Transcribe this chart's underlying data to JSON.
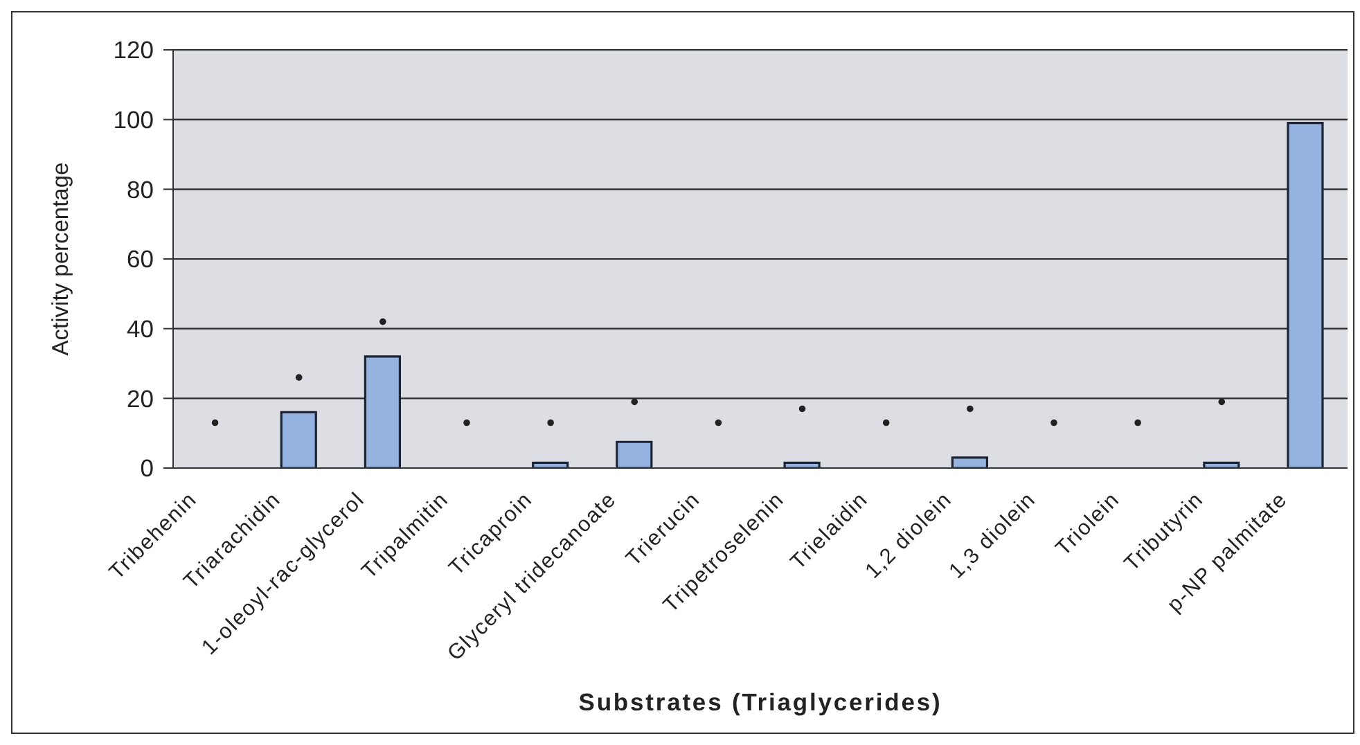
{
  "chart_data": {
    "type": "bar",
    "xlabel": "Substrates (Triaglycerides)",
    "ylabel": "Activity percentage",
    "categories": [
      "Tribehenin",
      "Triarachidin",
      "1-oleoyl-rac-glycerol",
      "Tripalmitin",
      "Tricaproin",
      "Glyceryl tridecanoate",
      "Trierucin",
      "Tripetroselenin",
      "Trielaidin",
      "1,2 diolein",
      "1,3 diolein",
      "Triolein",
      "Tributyrin",
      "p-NP palmitate"
    ],
    "series": [
      {
        "color": "#95b3e0",
        "values": [
          0,
          16,
          32,
          0,
          1.5,
          7.5,
          0,
          1.5,
          0,
          3,
          0,
          0,
          1.5,
          99
        ]
      },
      {
        "type": "scatter",
        "color": "#222222",
        "x": [
          "Tribehenin",
          "Triarachidin",
          "1-oleoyl-rac-glycerol",
          "Tripalmitin",
          "Tricaproin",
          "Glyceryl tridecanoate",
          "Trierucin",
          "Tripetroselenin",
          "Trielaidin",
          "1,2 diolein",
          "1,3 diolein",
          "Triolein",
          "Tributyrin",
          "p-NP palmitate"
        ],
        "values": [
          13,
          26,
          42,
          13,
          13,
          19,
          13,
          17,
          13,
          17,
          13,
          13,
          19,
          null
        ]
      }
    ],
    "ylim": [
      0,
      120
    ],
    "yticks": [
      0,
      20,
      40,
      60,
      80,
      100,
      120
    ],
    "grid": "y",
    "marker": "circle"
  }
}
